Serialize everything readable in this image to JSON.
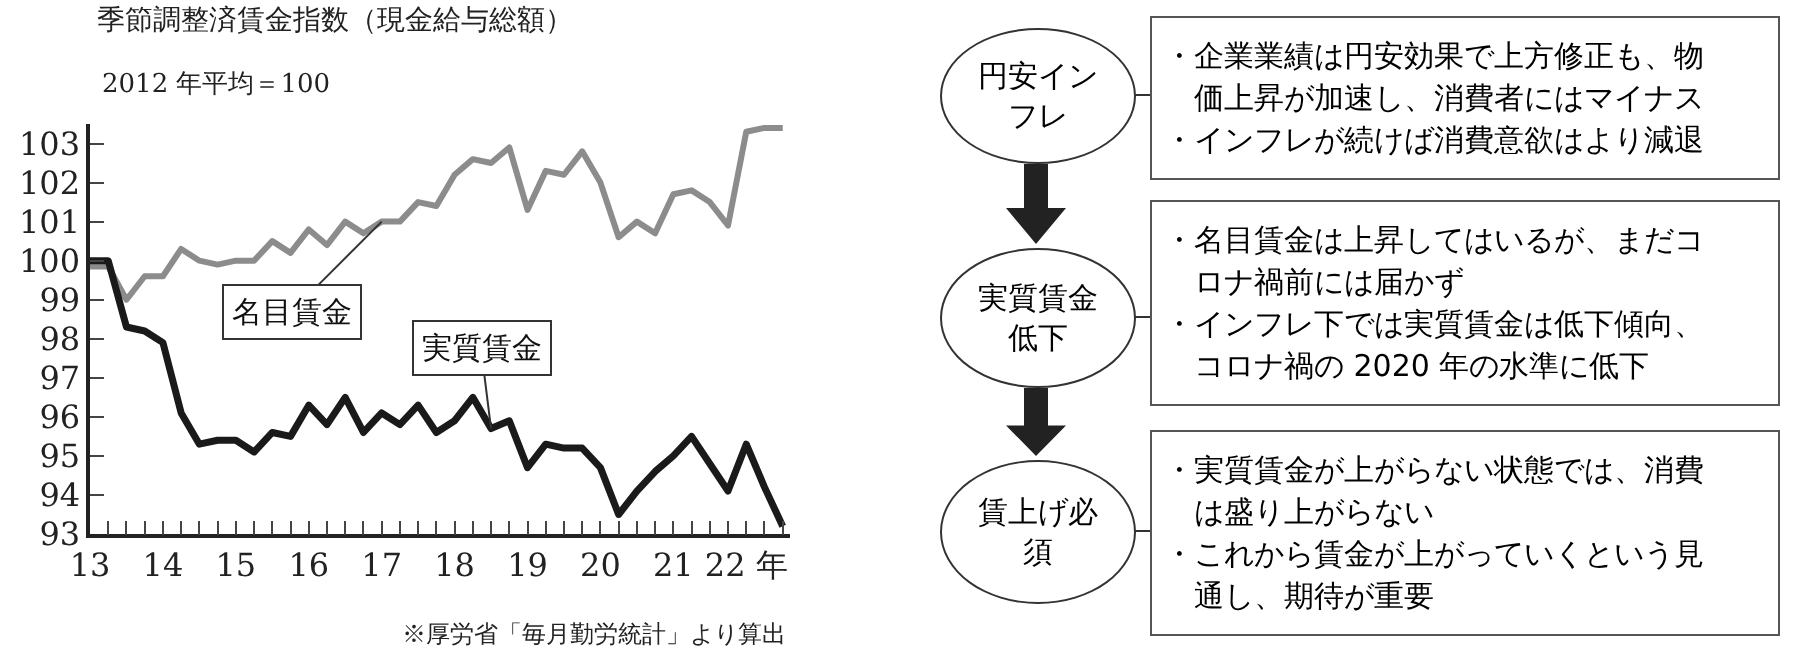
{
  "chart_data": [
    {
      "type": "line",
      "title": "季節調整済賃金指数（現金給与総額）",
      "subtitle": "2012 年平均＝100",
      "x": [
        13,
        13.25,
        13.5,
        13.75,
        14,
        14.25,
        14.5,
        14.75,
        15,
        15.25,
        15.5,
        15.75,
        16,
        16.25,
        16.5,
        16.75,
        17,
        17.25,
        17.5,
        17.75,
        18,
        18.25,
        18.5,
        18.75,
        19,
        19.25,
        19.5,
        19.75,
        20,
        20.25,
        20.5,
        20.75,
        21,
        21.25,
        21.5,
        21.75,
        22,
        22.25,
        22.5
      ],
      "series": [
        {
          "name": "名目賃金",
          "color": "#8c8c8c",
          "values": [
            99.85,
            99.85,
            99.0,
            99.6,
            99.6,
            100.3,
            100.0,
            99.9,
            100.0,
            100.0,
            100.5,
            100.2,
            100.8,
            100.4,
            101.0,
            100.7,
            101.0,
            101.0,
            101.5,
            101.4,
            102.2,
            102.6,
            102.5,
            102.9,
            101.3,
            102.3,
            102.2,
            102.8,
            102.0,
            100.6,
            101.0,
            100.7,
            101.7,
            101.8,
            101.5,
            100.9,
            103.3,
            103.4,
            103.4
          ]
        },
        {
          "name": "実質賃金",
          "color": "#1a1a1a",
          "values": [
            100.0,
            100.0,
            98.3,
            98.2,
            97.9,
            96.1,
            95.3,
            95.4,
            95.4,
            95.1,
            95.6,
            95.5,
            96.3,
            95.8,
            96.5,
            95.6,
            96.1,
            95.8,
            96.3,
            95.6,
            95.9,
            96.5,
            95.7,
            95.9,
            94.7,
            95.3,
            95.2,
            95.2,
            94.7,
            93.5,
            94.1,
            94.6,
            95.0,
            95.5,
            94.8,
            94.1,
            95.3,
            94.2,
            93.2
          ]
        }
      ],
      "xlim": [
        13,
        22.6
      ],
      "xticks": [
        13,
        {
          "value": 13.25,
          "label": null
        },
        {
          "value": 13.5,
          "label": null
        },
        {
          "value": 13.75,
          "label": null
        },
        14,
        {
          "value": 14.25,
          "label": null
        },
        {
          "value": 14.5,
          "label": null
        },
        {
          "value": 14.75,
          "label": null
        },
        15,
        {
          "value": 15.25,
          "label": null
        },
        {
          "value": 15.5,
          "label": null
        },
        {
          "value": 15.75,
          "label": null
        },
        16,
        {
          "value": 16.25,
          "label": null
        },
        {
          "value": 16.5,
          "label": null
        },
        {
          "value": 16.75,
          "label": null
        },
        17,
        {
          "value": 17.25,
          "label": null
        },
        {
          "value": 17.5,
          "label": null
        },
        {
          "value": 17.75,
          "label": null
        },
        18,
        {
          "value": 18.25,
          "label": null
        },
        {
          "value": 18.5,
          "label": null
        },
        {
          "value": 18.75,
          "label": null
        },
        19,
        {
          "value": 19.25,
          "label": null
        },
        {
          "value": 19.5,
          "label": null
        },
        {
          "value": 19.75,
          "label": null
        },
        20,
        {
          "value": 20.25,
          "label": null
        },
        {
          "value": 20.5,
          "label": null
        },
        {
          "value": 20.75,
          "label": null
        },
        21,
        {
          "value": 21.25,
          "label": null
        },
        {
          "value": 21.5,
          "label": null
        },
        {
          "value": 21.75,
          "label": null
        },
        {
          "value": 22,
          "label": "22 年"
        },
        {
          "value": 22.25,
          "label": null
        },
        {
          "value": 22.5,
          "label": null
        }
      ],
      "ylim": [
        93,
        103.5
      ],
      "yticks": [
        93,
        94,
        95,
        96,
        97,
        98,
        99,
        100,
        101,
        102,
        103
      ],
      "grid": false,
      "legend": false,
      "line_style": "solid",
      "marker": "none",
      "annotations": [
        "※厚労省「毎月勤労統計」より算出"
      ]
    },
    {
      "type": "other",
      "title": "円安インフレ",
      "annotations": [
        "・企業業績は円安効果で上方修正も、物価上昇が加速し、消費者にはマイナス",
        "・インフレが続けば消費意欲はより減退"
      ]
    },
    {
      "type": "other",
      "title": "実質賃金低下",
      "annotations": [
        "・名目賃金は上昇してはいるが、まだコロナ禍前には届かず",
        "・インフレ下では実質賃金は低下傾向、コロナ禍の 2020 年の水準に低下"
      ]
    },
    {
      "type": "other",
      "title": "賃上げ必須",
      "annotations": [
        "・実質賃金が上がらない状態では、消費は盛り上がらない",
        "・これから賃金が上がっていくという見通し、期待が重要"
      ]
    }
  ]
}
